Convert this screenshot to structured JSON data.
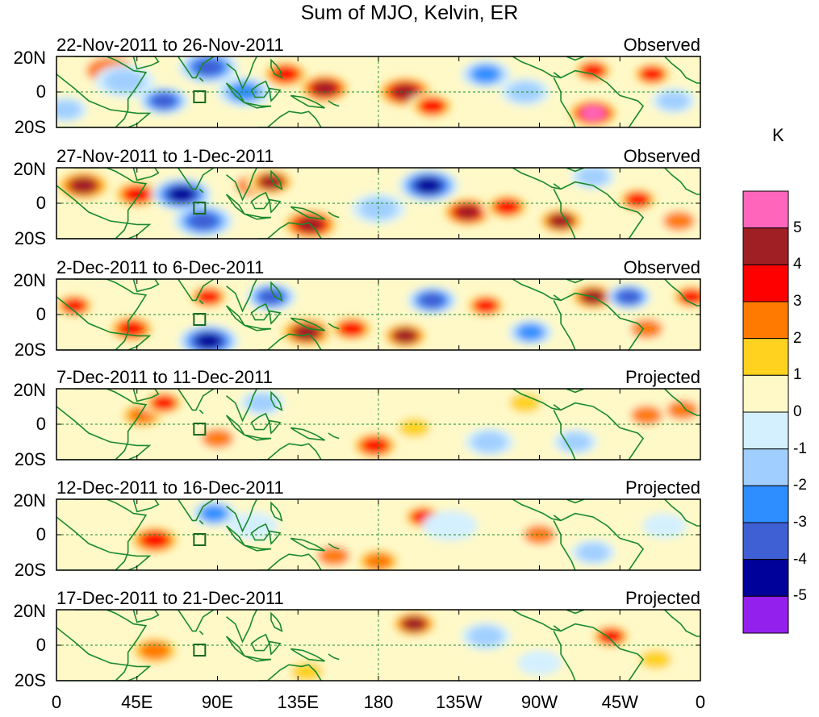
{
  "chart_data": {
    "type": "heatmap",
    "title": "Sum of MJO, Kelvin, ER",
    "colorbar_unit": "K",
    "colorbar_levels": [
      5,
      4,
      3,
      2,
      1,
      0,
      -1,
      -2,
      -3,
      -4,
      -5
    ],
    "colorbar_colors": [
      "#ff66bb",
      "#a01f25",
      "#ff0000",
      "#ff7a00",
      "#ffd21f",
      "#fff9c8",
      "#d4f0ff",
      "#a0cfff",
      "#2f8eff",
      "#3f5fd4",
      "#00009a",
      "#9420ee"
    ],
    "x_ticks": [
      "0",
      "45E",
      "90E",
      "135E",
      "180",
      "135W",
      "90W",
      "45W",
      "0"
    ],
    "y_ticks": [
      "20N",
      "0",
      "20S"
    ],
    "panels": [
      {
        "date_range": "22-Nov-2011 to 26-Nov-2011",
        "status": "Observed",
        "blobs": [
          [
            30,
            12,
            2,
            5.5
          ],
          [
            38,
            6,
            -1.5,
            4.5
          ],
          [
            60,
            -5,
            -4,
            3.5
          ],
          [
            85,
            14,
            -4,
            4.5
          ],
          [
            105,
            0,
            -3,
            4.0
          ],
          [
            128,
            10,
            3.5,
            3.5
          ],
          [
            150,
            2,
            4.5,
            4.0
          ],
          [
            195,
            0,
            4.5,
            4.5
          ],
          [
            210,
            -8,
            3,
            3.5
          ],
          [
            240,
            10,
            -3,
            3.5
          ],
          [
            262,
            0,
            -2,
            3.5
          ],
          [
            300,
            12,
            3,
            3.0
          ],
          [
            300,
            -12,
            5,
            4.0
          ],
          [
            333,
            10,
            3,
            3.0
          ],
          [
            345,
            -5,
            -2,
            3.0
          ],
          [
            5,
            -10,
            -2,
            3.0
          ]
        ]
      },
      {
        "date_range": "27-Nov-2011 to 1-Dec-2011",
        "status": "Observed",
        "blobs": [
          [
            15,
            10,
            4,
            4.5
          ],
          [
            45,
            5,
            3,
            4.0
          ],
          [
            70,
            5,
            -5,
            4.5
          ],
          [
            82,
            -10,
            -4,
            4.5
          ],
          [
            110,
            10,
            2,
            3.5
          ],
          [
            120,
            12,
            4,
            3.5
          ],
          [
            142,
            -12,
            4.5,
            4.5
          ],
          [
            180,
            -3,
            -1.5,
            4.0
          ],
          [
            208,
            10,
            -4.5,
            4.5
          ],
          [
            230,
            -5,
            4.5,
            4.0
          ],
          [
            252,
            -2,
            3,
            3.5
          ],
          [
            282,
            -10,
            4,
            3.5
          ],
          [
            325,
            2,
            3,
            3.0
          ],
          [
            348,
            -10,
            2,
            3.0
          ],
          [
            300,
            15,
            -2,
            3.0
          ]
        ]
      },
      {
        "date_range": "2-Dec-2011 to 6-Dec-2011",
        "status": "Observed",
        "blobs": [
          [
            10,
            5,
            3,
            3.0
          ],
          [
            42,
            -8,
            3.5,
            3.5
          ],
          [
            85,
            -15,
            -5,
            4.5
          ],
          [
            85,
            10,
            3,
            3.0
          ],
          [
            120,
            10,
            -4,
            3.5
          ],
          [
            140,
            -10,
            4,
            4.5
          ],
          [
            165,
            -8,
            3,
            3.5
          ],
          [
            195,
            -12,
            4,
            3.5
          ],
          [
            210,
            8,
            -4,
            3.5
          ],
          [
            240,
            5,
            3,
            3.0
          ],
          [
            265,
            -10,
            -3,
            3.0
          ],
          [
            300,
            10,
            4,
            3.5
          ],
          [
            320,
            10,
            -4,
            3.0
          ],
          [
            330,
            -8,
            2,
            3.0
          ],
          [
            355,
            10,
            3,
            3.0
          ]
        ]
      },
      {
        "date_range": "7-Dec-2011 to 11-Dec-2011",
        "status": "Projected",
        "blobs": [
          [
            48,
            5,
            2.5,
            3.5
          ],
          [
            60,
            12,
            3,
            3.0
          ],
          [
            90,
            -8,
            2,
            3.0
          ],
          [
            115,
            12,
            -2,
            3.0
          ],
          [
            178,
            -12,
            3.5,
            3.5
          ],
          [
            200,
            -2,
            1.5,
            3.0
          ],
          [
            242,
            -10,
            -2,
            3.5
          ],
          [
            262,
            12,
            1.5,
            3.0
          ],
          [
            290,
            -10,
            -2,
            3.0
          ],
          [
            330,
            5,
            2,
            3.0
          ],
          [
            350,
            8,
            2,
            3.0
          ]
        ]
      },
      {
        "date_range": "12-Dec-2011 to 16-Dec-2011",
        "status": "Projected",
        "blobs": [
          [
            55,
            -3,
            3.5,
            4.0
          ],
          [
            88,
            12,
            -3,
            3.0
          ],
          [
            110,
            5,
            -1,
            3.5
          ],
          [
            155,
            -12,
            2,
            3.0
          ],
          [
            180,
            -15,
            2.5,
            3.5
          ],
          [
            205,
            10,
            3,
            3.0
          ],
          [
            220,
            5,
            -1,
            4.0
          ],
          [
            270,
            0,
            2,
            3.0
          ],
          [
            300,
            -10,
            -2,
            3.0
          ],
          [
            340,
            5,
            -1,
            3.0
          ]
        ]
      },
      {
        "date_range": "17-Dec-2011 to 21-Dec-2011",
        "status": "Projected",
        "blobs": [
          [
            55,
            -3,
            2.5,
            4.0
          ],
          [
            200,
            12,
            4,
            3.5
          ],
          [
            240,
            5,
            -2,
            3.5
          ],
          [
            310,
            5,
            3,
            3.0
          ],
          [
            270,
            -10,
            -1,
            3.0
          ],
          [
            335,
            -8,
            1.5,
            3.0
          ],
          [
            140,
            -15,
            1.5,
            3.0
          ]
        ]
      }
    ]
  }
}
